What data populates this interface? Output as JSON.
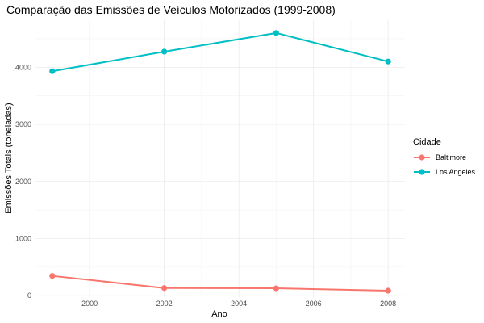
{
  "chart_data": {
    "type": "line",
    "title": "Comparação das Emissões de Veículos Motorizados (1999-2008)",
    "xlabel": "Ano",
    "ylabel": "Emissões Totais (toneladas)",
    "x": [
      1999,
      2002,
      2005,
      2008
    ],
    "xlim": [
      1998.55,
      2008.45
    ],
    "ylim": [
      -25,
      4825
    ],
    "x_ticks": [
      2000,
      2002,
      2004,
      2006,
      2008
    ],
    "x_tick_labels": [
      "2000",
      "2002",
      "2004",
      "2006",
      "2008"
    ],
    "y_ticks": [
      0,
      1000,
      2000,
      3000,
      4000
    ],
    "y_tick_labels": [
      "0",
      "1000",
      "2000",
      "3000",
      "4000"
    ],
    "grid": true,
    "legend": {
      "title": "Cidade",
      "placement": "right"
    },
    "series": [
      {
        "name": "Baltimore",
        "color": "#F8766D",
        "values": [
          347,
          134,
          130,
          88
        ]
      },
      {
        "name": "Los Angeles",
        "color": "#00BFC4",
        "values": [
          3931,
          4274,
          4601,
          4101
        ]
      }
    ]
  }
}
